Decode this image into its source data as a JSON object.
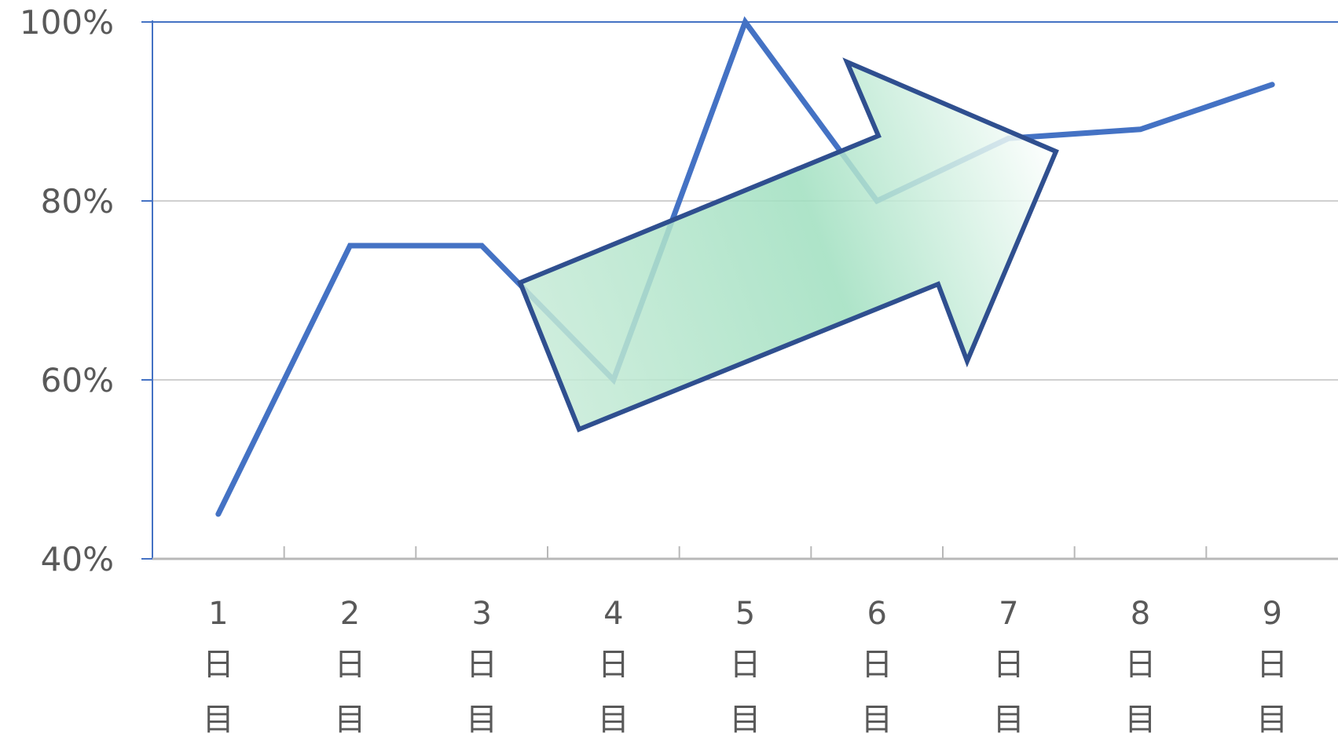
{
  "chart_data": {
    "type": "line",
    "categories": [
      [
        "1",
        "日",
        "目"
      ],
      [
        "2",
        "日",
        "目"
      ],
      [
        "3",
        "日",
        "目"
      ],
      [
        "4",
        "日",
        "目"
      ],
      [
        "5",
        "日",
        "目"
      ],
      [
        "6",
        "日",
        "目"
      ],
      [
        "7",
        "日",
        "目"
      ],
      [
        "8",
        "日",
        "目"
      ],
      [
        "9",
        "日",
        "目"
      ]
    ],
    "series": [
      {
        "values": [
          0.45,
          0.75,
          0.75,
          0.6,
          1.0,
          0.8,
          0.87,
          0.88,
          0.93
        ]
      }
    ],
    "ylim": [
      0.4,
      1.0
    ],
    "yticks": [
      {
        "value": 1.0,
        "label": "100%"
      },
      {
        "value": 0.8,
        "label": "80%"
      },
      {
        "value": 0.6,
        "label": "60%"
      },
      {
        "value": 0.4,
        "label": "40%"
      }
    ],
    "grid": true,
    "title": "",
    "xlabel": "",
    "ylabel": "",
    "annotation": {
      "shape": "upward-trend-arrow",
      "fill_colors": [
        "#c8ebd8",
        "#9fdfbf",
        "#ffffff"
      ],
      "outline_color": "#2f4f8f"
    },
    "colors": {
      "line": "#4472c4",
      "grid": "#c0c0c0",
      "axis": "#4472c4",
      "tick_text": "#595959"
    }
  }
}
